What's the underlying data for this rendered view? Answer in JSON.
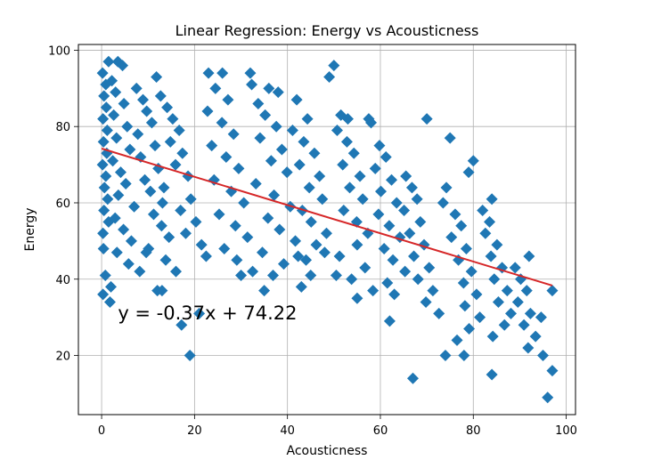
{
  "chart_data": {
    "type": "scatter",
    "title": "Linear Regression: Energy vs Acousticness",
    "xlabel": "Acousticness",
    "ylabel": "Energy",
    "xlim": [
      -5,
      102
    ],
    "ylim": [
      4.5,
      101.5
    ],
    "xticks": [
      "0",
      "20",
      "40",
      "60",
      "80",
      "100"
    ],
    "yticks": [
      "20",
      "40",
      "60",
      "80",
      "100"
    ],
    "grid": true,
    "marker": "diamond",
    "colors": {
      "points": "#1f77b4",
      "regression": "#d62728"
    },
    "regression": {
      "slope": -0.37,
      "intercept": 74.22,
      "x_range": [
        0,
        97
      ],
      "label": "y = -0.37x + 74.22"
    },
    "annotation": {
      "text": "y = -0.37x + 74.22",
      "x": 3.5,
      "y": 29.5
    },
    "series": [
      {
        "points": [
          [
            0.2,
            94.0
          ],
          [
            0.5,
            88.0
          ],
          [
            0.3,
            82.0
          ],
          [
            0.4,
            76.0
          ],
          [
            0.2,
            70.0
          ],
          [
            0.6,
            64.0
          ],
          [
            0.5,
            58.0
          ],
          [
            0.3,
            52.0
          ],
          [
            0.4,
            48.0
          ],
          [
            0.8,
            41.0
          ],
          [
            0.3,
            36.0
          ],
          [
            0.9,
            91.0
          ],
          [
            1.0,
            85.0
          ],
          [
            1.2,
            79.0
          ],
          [
            1.1,
            73.0
          ],
          [
            0.9,
            67.0
          ],
          [
            1.3,
            61.0
          ],
          [
            1.5,
            55.0
          ],
          [
            1.8,
            34.0
          ],
          [
            2.0,
            38.0
          ],
          [
            1.5,
            97.0
          ],
          [
            3.5,
            97.0
          ],
          [
            4.5,
            96.0
          ],
          [
            2.2,
            92.0
          ],
          [
            3.0,
            89.0
          ],
          [
            4.8,
            86.0
          ],
          [
            2.6,
            83.0
          ],
          [
            5.5,
            80.0
          ],
          [
            3.2,
            77.0
          ],
          [
            6.1,
            74.0
          ],
          [
            2.4,
            71.0
          ],
          [
            4.1,
            68.0
          ],
          [
            5.2,
            65.0
          ],
          [
            3.6,
            62.0
          ],
          [
            7.0,
            59.0
          ],
          [
            2.9,
            56.0
          ],
          [
            4.7,
            53.0
          ],
          [
            6.4,
            50.0
          ],
          [
            3.3,
            47.0
          ],
          [
            5.8,
            44.0
          ],
          [
            8.2,
            42.0
          ],
          [
            9.6,
            47.0
          ],
          [
            7.5,
            90.0
          ],
          [
            8.9,
            87.0
          ],
          [
            9.7,
            84.0
          ],
          [
            10.8,
            81.0
          ],
          [
            7.8,
            78.0
          ],
          [
            11.5,
            75.0
          ],
          [
            8.4,
            72.0
          ],
          [
            12.2,
            69.0
          ],
          [
            9.3,
            66.0
          ],
          [
            10.5,
            63.0
          ],
          [
            13.1,
            60.0
          ],
          [
            11.2,
            57.0
          ],
          [
            12.9,
            54.0
          ],
          [
            14.5,
            51.0
          ],
          [
            10.1,
            48.0
          ],
          [
            13.8,
            45.0
          ],
          [
            16.0,
            42.0
          ],
          [
            11.8,
            93.0
          ],
          [
            12.7,
            88.0
          ],
          [
            14.1,
            85.0
          ],
          [
            15.3,
            82.0
          ],
          [
            16.7,
            79.0
          ],
          [
            14.8,
            76.0
          ],
          [
            17.4,
            73.0
          ],
          [
            15.9,
            70.0
          ],
          [
            18.6,
            67.0
          ],
          [
            13.4,
            64.0
          ],
          [
            19.2,
            61.0
          ],
          [
            17.0,
            58.0
          ],
          [
            20.3,
            55.0
          ],
          [
            18.1,
            52.0
          ],
          [
            21.5,
            49.0
          ],
          [
            12.0,
            37.0
          ],
          [
            13.0,
            37.0
          ],
          [
            17.2,
            28.0
          ],
          [
            19.0,
            20.0
          ],
          [
            21.0,
            31.0
          ],
          [
            23.0,
            94.0
          ],
          [
            26.0,
            94.0
          ],
          [
            24.5,
            90.0
          ],
          [
            27.2,
            87.0
          ],
          [
            22.8,
            84.0
          ],
          [
            25.9,
            81.0
          ],
          [
            28.4,
            78.0
          ],
          [
            23.7,
            75.0
          ],
          [
            26.8,
            72.0
          ],
          [
            29.5,
            69.0
          ],
          [
            24.2,
            66.0
          ],
          [
            27.9,
            63.0
          ],
          [
            30.6,
            60.0
          ],
          [
            25.3,
            57.0
          ],
          [
            28.8,
            54.0
          ],
          [
            31.4,
            51.0
          ],
          [
            26.4,
            48.0
          ],
          [
            29.1,
            45.0
          ],
          [
            32.5,
            42.0
          ],
          [
            22.5,
            46.0
          ],
          [
            30.0,
            41.0
          ],
          [
            32.0,
            94.0
          ],
          [
            32.3,
            91.0
          ],
          [
            36.0,
            90.0
          ],
          [
            33.7,
            86.0
          ],
          [
            35.2,
            83.0
          ],
          [
            37.6,
            80.0
          ],
          [
            34.1,
            77.0
          ],
          [
            38.8,
            74.0
          ],
          [
            36.5,
            71.0
          ],
          [
            39.9,
            68.0
          ],
          [
            33.2,
            65.0
          ],
          [
            37.1,
            62.0
          ],
          [
            40.6,
            59.0
          ],
          [
            35.8,
            56.0
          ],
          [
            38.3,
            53.0
          ],
          [
            41.7,
            50.0
          ],
          [
            34.6,
            47.0
          ],
          [
            39.2,
            44.0
          ],
          [
            36.9,
            41.0
          ],
          [
            35.0,
            37.0
          ],
          [
            38.0,
            89.0
          ],
          [
            42.0,
            87.0
          ],
          [
            44.3,
            82.0
          ],
          [
            41.1,
            79.0
          ],
          [
            43.5,
            76.0
          ],
          [
            45.8,
            73.0
          ],
          [
            42.6,
            70.0
          ],
          [
            46.9,
            67.0
          ],
          [
            44.7,
            64.0
          ],
          [
            47.5,
            61.0
          ],
          [
            43.2,
            58.0
          ],
          [
            45.1,
            55.0
          ],
          [
            48.4,
            52.0
          ],
          [
            46.2,
            49.0
          ],
          [
            42.3,
            46.0
          ],
          [
            44.0,
            45.0
          ],
          [
            45.0,
            41.0
          ],
          [
            48.0,
            47.0
          ],
          [
            43.0,
            38.0
          ],
          [
            50.0,
            96.0
          ],
          [
            49.0,
            93.0
          ],
          [
            51.5,
            83.0
          ],
          [
            53.0,
            82.0
          ],
          [
            50.7,
            79.0
          ],
          [
            52.8,
            76.0
          ],
          [
            54.3,
            73.0
          ],
          [
            51.9,
            70.0
          ],
          [
            55.6,
            67.0
          ],
          [
            53.4,
            64.0
          ],
          [
            56.2,
            61.0
          ],
          [
            52.1,
            58.0
          ],
          [
            54.9,
            55.0
          ],
          [
            57.3,
            52.0
          ],
          [
            55.0,
            49.0
          ],
          [
            51.2,
            46.0
          ],
          [
            56.7,
            43.0
          ],
          [
            53.8,
            40.0
          ],
          [
            58.4,
            37.0
          ],
          [
            50.5,
            41.0
          ],
          [
            55.0,
            35.0
          ],
          [
            58.0,
            81.0
          ],
          [
            57.5,
            82.0
          ],
          [
            59.8,
            75.0
          ],
          [
            61.2,
            72.0
          ],
          [
            58.9,
            69.0
          ],
          [
            62.4,
            66.0
          ],
          [
            60.1,
            63.0
          ],
          [
            63.5,
            60.0
          ],
          [
            59.6,
            57.0
          ],
          [
            61.9,
            54.0
          ],
          [
            64.2,
            51.0
          ],
          [
            60.8,
            48.0
          ],
          [
            62.7,
            45.0
          ],
          [
            65.3,
            42.0
          ],
          [
            61.5,
            39.0
          ],
          [
            63.0,
            36.0
          ],
          [
            62.0,
            29.0
          ],
          [
            70.0,
            82.0
          ],
          [
            65.5,
            67.0
          ],
          [
            66.8,
            64.0
          ],
          [
            67.9,
            61.0
          ],
          [
            65.1,
            58.0
          ],
          [
            68.6,
            55.0
          ],
          [
            66.3,
            52.0
          ],
          [
            69.4,
            49.0
          ],
          [
            67.2,
            46.0
          ],
          [
            70.5,
            43.0
          ],
          [
            68.1,
            40.0
          ],
          [
            71.3,
            37.0
          ],
          [
            69.8,
            34.0
          ],
          [
            72.6,
            31.0
          ],
          [
            67.0,
            14.0
          ],
          [
            73.5,
            60.0
          ],
          [
            75.0,
            77.0
          ],
          [
            74.2,
            64.0
          ],
          [
            76.1,
            57.0
          ],
          [
            77.4,
            54.0
          ],
          [
            75.3,
            51.0
          ],
          [
            78.5,
            48.0
          ],
          [
            76.8,
            45.0
          ],
          [
            79.6,
            42.0
          ],
          [
            77.9,
            39.0
          ],
          [
            80.7,
            36.0
          ],
          [
            78.2,
            33.0
          ],
          [
            81.4,
            30.0
          ],
          [
            79.1,
            27.0
          ],
          [
            76.5,
            24.0
          ],
          [
            74.0,
            20.0
          ],
          [
            78.0,
            20.0
          ],
          [
            79.0,
            68.0
          ],
          [
            80.0,
            71.0
          ],
          [
            82.0,
            58.0
          ],
          [
            84.0,
            61.0
          ],
          [
            83.5,
            55.0
          ],
          [
            82.6,
            52.0
          ],
          [
            85.1,
            49.0
          ],
          [
            83.8,
            46.0
          ],
          [
            86.2,
            43.0
          ],
          [
            84.5,
            40.0
          ],
          [
            87.3,
            37.0
          ],
          [
            85.4,
            34.0
          ],
          [
            88.1,
            31.0
          ],
          [
            86.7,
            28.0
          ],
          [
            84.2,
            25.0
          ],
          [
            84.0,
            15.0
          ],
          [
            89.0,
            43.0
          ],
          [
            90.2,
            40.0
          ],
          [
            91.5,
            37.0
          ],
          [
            89.6,
            34.0
          ],
          [
            92.3,
            31.0
          ],
          [
            90.9,
            28.0
          ],
          [
            93.4,
            25.0
          ],
          [
            91.8,
            22.0
          ],
          [
            92.0,
            46.0
          ],
          [
            94.6,
            30.0
          ],
          [
            95.0,
            20.0
          ],
          [
            96.0,
            9.0
          ],
          [
            97.0,
            16.0
          ],
          [
            97.0,
            37.0
          ]
        ]
      }
    ]
  }
}
